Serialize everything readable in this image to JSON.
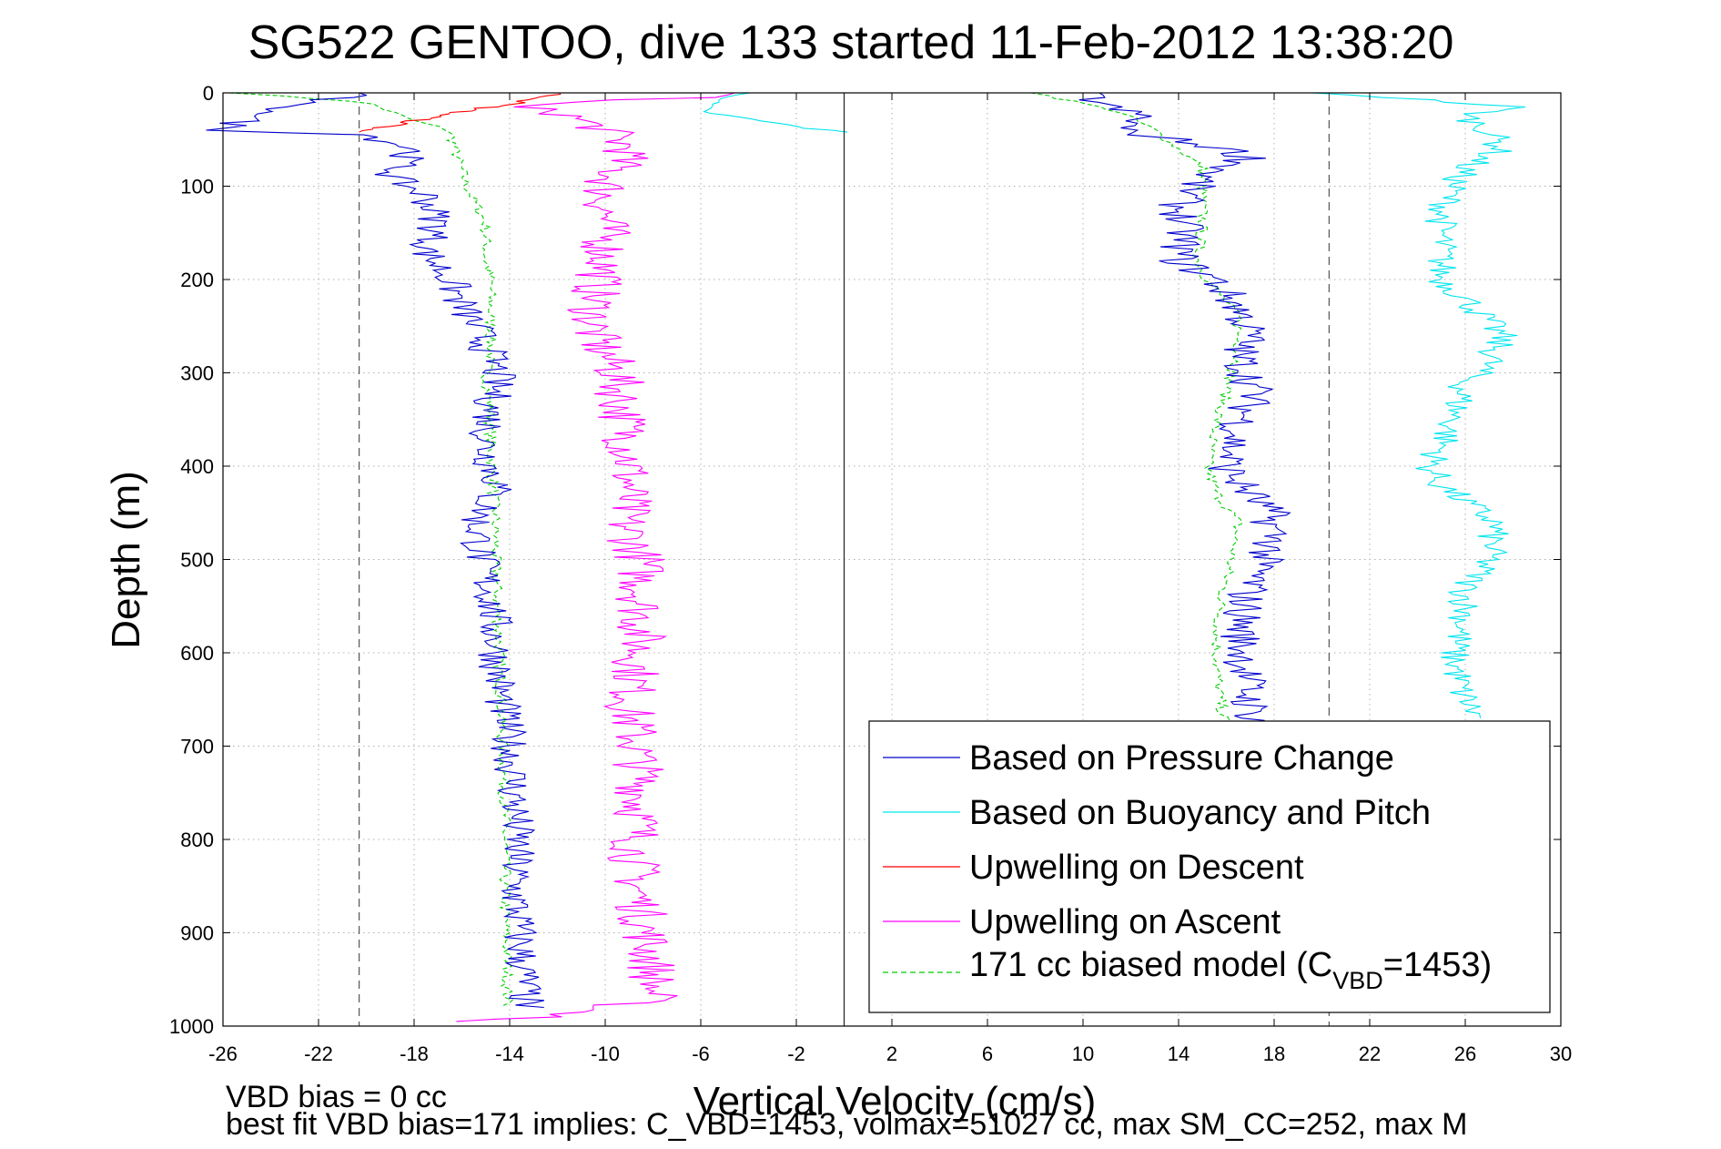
{
  "chart_data": {
    "type": "line",
    "title": "SG522 GENTOO, dive 133 started 11-Feb-2012 13:38:20",
    "xlabel": "Vertical Velocity (cm/s)",
    "ylabel": "Depth (m)",
    "xlim": [
      -26,
      30
    ],
    "ylim": [
      0,
      1000
    ],
    "y_reversed": true,
    "grid": true,
    "x_ticks": [
      "-26",
      "-22",
      "-18",
      "-14",
      "-10",
      "-6",
      "-2",
      "2",
      "6",
      "10",
      "14",
      "18",
      "22",
      "26",
      "30"
    ],
    "y_ticks": [
      "0",
      "100",
      "200",
      "300",
      "400",
      "500",
      "600",
      "700",
      "800",
      "900",
      "1000"
    ],
    "vertical_lines": [
      {
        "x": -20.3,
        "style": "dashed"
      },
      {
        "x": 0,
        "style": "solid"
      },
      {
        "x": 20.3,
        "style": "dashed"
      }
    ],
    "legend_position": "bottom-right",
    "series": [
      {
        "name": "Based on Pressure Change",
        "color": "#0000cc",
        "style": "solid",
        "knots": [
          [
            0,
            -20
          ],
          [
            8,
            -22
          ],
          [
            14,
            -24
          ],
          [
            20,
            -23.5
          ],
          [
            28,
            -25
          ],
          [
            40,
            -26
          ],
          [
            45,
            -20
          ],
          [
            60,
            -18
          ],
          [
            90,
            -19
          ],
          [
            110,
            -17.5
          ],
          [
            140,
            -17
          ],
          [
            170,
            -17.5
          ],
          [
            200,
            -16.5
          ],
          [
            230,
            -16
          ],
          [
            260,
            -15.2
          ],
          [
            300,
            -14.5
          ],
          [
            340,
            -14.8
          ],
          [
            380,
            -15
          ],
          [
            420,
            -14.5
          ],
          [
            460,
            -15.4
          ],
          [
            500,
            -15.2
          ],
          [
            540,
            -14.8
          ],
          [
            580,
            -14.6
          ],
          [
            620,
            -14.5
          ],
          [
            660,
            -14.3
          ],
          [
            700,
            -14
          ],
          [
            750,
            -13.8
          ],
          [
            800,
            -13.7
          ],
          [
            850,
            -13.8
          ],
          [
            900,
            -13.6
          ],
          [
            950,
            -13.4
          ],
          [
            980,
            -13.3
          ]
        ],
        "mirror_knots": [
          [
            0,
            10
          ],
          [
            15,
            11
          ],
          [
            25,
            12.5
          ],
          [
            40,
            11.5
          ],
          [
            60,
            16
          ],
          [
            70,
            17
          ],
          [
            90,
            15
          ],
          [
            120,
            14
          ],
          [
            150,
            14.2
          ],
          [
            180,
            14
          ],
          [
            200,
            15.5
          ],
          [
            230,
            16.5
          ],
          [
            260,
            17
          ],
          [
            280,
            16.5
          ],
          [
            320,
            17.2
          ],
          [
            360,
            16.5
          ],
          [
            400,
            16
          ],
          [
            420,
            16.6
          ],
          [
            450,
            17.8
          ],
          [
            480,
            18
          ],
          [
            500,
            17.5
          ],
          [
            540,
            16.8
          ],
          [
            580,
            16.6
          ],
          [
            620,
            16.8
          ],
          [
            660,
            17
          ],
          [
            680,
            17.4
          ]
        ]
      },
      {
        "name": "Based on Buoyancy and Pitch",
        "color": "#00e5ee",
        "style": "solid",
        "knots": [
          [
            0,
            -4
          ],
          [
            10,
            -5.5
          ],
          [
            20,
            -6
          ],
          [
            28,
            -4
          ],
          [
            38,
            -1.5
          ],
          [
            42,
            0
          ]
        ],
        "mirror_knots": [
          [
            0,
            20
          ],
          [
            5,
            23
          ],
          [
            15,
            28
          ],
          [
            25,
            26
          ],
          [
            40,
            27
          ],
          [
            60,
            27.5
          ],
          [
            80,
            26
          ],
          [
            100,
            25.5
          ],
          [
            130,
            25
          ],
          [
            160,
            25
          ],
          [
            200,
            25
          ],
          [
            220,
            26
          ],
          [
            260,
            27.5
          ],
          [
            290,
            27
          ],
          [
            310,
            26
          ],
          [
            350,
            25.5
          ],
          [
            380,
            25
          ],
          [
            400,
            24.5
          ],
          [
            420,
            25
          ],
          [
            460,
            27.2
          ],
          [
            500,
            27
          ],
          [
            530,
            26
          ],
          [
            560,
            26
          ],
          [
            600,
            25.5
          ],
          [
            640,
            25.8
          ],
          [
            670,
            26.5
          ]
        ]
      },
      {
        "name": "Upwelling on Descent",
        "color": "#ff0000",
        "style": "solid",
        "knots": [
          [
            0,
            -12
          ],
          [
            5,
            -12.5
          ],
          [
            12,
            -14
          ],
          [
            20,
            -16
          ],
          [
            30,
            -18
          ],
          [
            38,
            -19.5
          ],
          [
            42,
            -20.5
          ]
        ]
      },
      {
        "name": "Upwelling on Ascent",
        "color": "#ff00ff",
        "style": "solid",
        "knots": [
          [
            0,
            -4
          ],
          [
            5,
            -6
          ],
          [
            10,
            -12
          ],
          [
            15,
            -14
          ],
          [
            20,
            -12
          ],
          [
            40,
            -10
          ],
          [
            60,
            -9
          ],
          [
            100,
            -10
          ],
          [
            140,
            -10
          ],
          [
            180,
            -10
          ],
          [
            220,
            -10.5
          ],
          [
            260,
            -10.5
          ],
          [
            300,
            -9.5
          ],
          [
            340,
            -9.3
          ],
          [
            380,
            -9
          ],
          [
            420,
            -9
          ],
          [
            460,
            -9.2
          ],
          [
            500,
            -8.5
          ],
          [
            540,
            -8.5
          ],
          [
            580,
            -8.5
          ],
          [
            620,
            -8.7
          ],
          [
            660,
            -9
          ],
          [
            700,
            -8.7
          ],
          [
            740,
            -8.5
          ],
          [
            780,
            -8.6
          ],
          [
            820,
            -8.8
          ],
          [
            860,
            -8.6
          ],
          [
            900,
            -8.3
          ],
          [
            940,
            -8
          ],
          [
            970,
            -8
          ],
          [
            990,
            -12
          ],
          [
            995,
            -16
          ]
        ]
      },
      {
        "name": "171 cc biased model (CVBD=1453)",
        "color": "#00cc00",
        "style": "dashed",
        "knots": [
          [
            0,
            -25.5
          ],
          [
            10,
            -20
          ],
          [
            20,
            -19
          ],
          [
            30,
            -18
          ],
          [
            40,
            -16.5
          ],
          [
            60,
            -16.3
          ],
          [
            100,
            -15.8
          ],
          [
            140,
            -15
          ],
          [
            180,
            -15
          ],
          [
            200,
            -14.8
          ],
          [
            240,
            -14.8
          ],
          [
            280,
            -14.8
          ],
          [
            300,
            -15
          ],
          [
            340,
            -14.8
          ],
          [
            380,
            -14.8
          ],
          [
            420,
            -14.7
          ],
          [
            460,
            -14.6
          ],
          [
            500,
            -14.6
          ],
          [
            560,
            -14.5
          ],
          [
            620,
            -14.4
          ],
          [
            700,
            -14.3
          ],
          [
            780,
            -14.2
          ],
          [
            860,
            -14.2
          ],
          [
            940,
            -14.1
          ],
          [
            980,
            -14.1
          ]
        ],
        "mirror_knots": [
          [
            0,
            8
          ],
          [
            20,
            11.5
          ],
          [
            40,
            13
          ],
          [
            60,
            14
          ],
          [
            80,
            15
          ],
          [
            100,
            15
          ],
          [
            140,
            15
          ],
          [
            180,
            14.8
          ],
          [
            200,
            15.2
          ],
          [
            240,
            16.5
          ],
          [
            280,
            16.5
          ],
          [
            320,
            16
          ],
          [
            360,
            15.5
          ],
          [
            400,
            15.2
          ],
          [
            430,
            15.6
          ],
          [
            460,
            16.5
          ],
          [
            500,
            16.2
          ],
          [
            540,
            15.8
          ],
          [
            580,
            15.6
          ],
          [
            620,
            15.6
          ],
          [
            660,
            15.8
          ],
          [
            680,
            16
          ]
        ]
      }
    ]
  },
  "legend": {
    "items": [
      {
        "label": "Based on Pressure Change",
        "color": "#0000cc",
        "dashed": false
      },
      {
        "label": "Based on Buoyancy and Pitch",
        "color": "#00e5ee",
        "dashed": false
      },
      {
        "label": "Upwelling on Descent",
        "color": "#ff0000",
        "dashed": false
      },
      {
        "label": "Upwelling on Ascent",
        "color": "#ff00ff",
        "dashed": false
      },
      {
        "label_main": "171 cc biased model (C",
        "label_sub": "VBD",
        "label_end": "=1453)",
        "color": "#00cc00",
        "dashed": true
      }
    ]
  },
  "footer": {
    "bias_text": "VBD bias = 0 cc",
    "fit_text": "best fit VBD bias=171 implies: C_VBD=1453, volmax=51027 cc, max SM_CC=252, max M"
  }
}
